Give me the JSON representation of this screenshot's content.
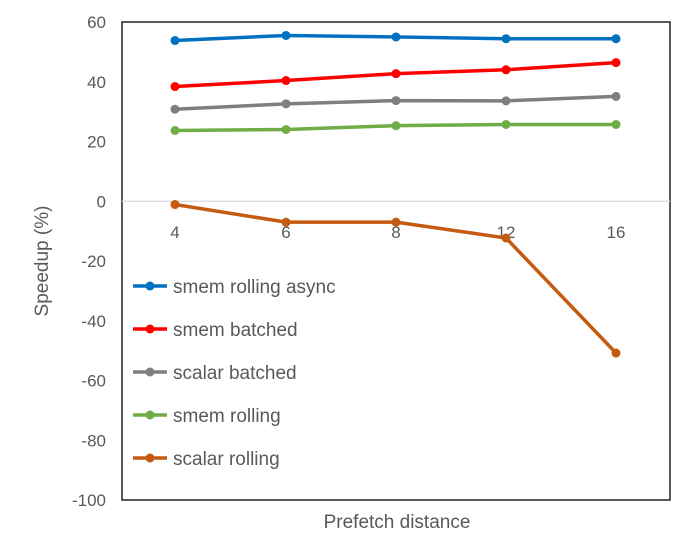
{
  "chart_data": {
    "type": "line",
    "title": "",
    "xlabel": "Prefetch distance",
    "ylabel": "Speedup (%)",
    "categories": [
      "4",
      "6",
      "8",
      "12",
      "16"
    ],
    "ylim": [
      -100,
      60
    ],
    "yticks": [
      60,
      40,
      20,
      0,
      -20,
      -40,
      -60,
      -80,
      -100
    ],
    "grid": false,
    "legend_position": "left",
    "series": [
      {
        "name": "smem rolling async",
        "color": "#0070C0",
        "values": [
          53.8,
          55.5,
          55.0,
          54.4,
          54.4
        ]
      },
      {
        "name": "smem batched",
        "color": "#FF0000",
        "values": [
          38.4,
          40.4,
          42.7,
          44.0,
          46.4
        ]
      },
      {
        "name": "scalar batched",
        "color": "#7F7F7F",
        "values": [
          30.8,
          32.6,
          33.7,
          33.6,
          35.1
        ]
      },
      {
        "name": "smem rolling",
        "color": "#70AD47",
        "values": [
          23.7,
          24.0,
          25.3,
          25.7,
          25.7
        ]
      },
      {
        "name": "scalar rolling",
        "color": "#C55A11",
        "values": [
          -1.1,
          -7.0,
          -7.0,
          -12.3,
          -50.8
        ]
      }
    ]
  }
}
